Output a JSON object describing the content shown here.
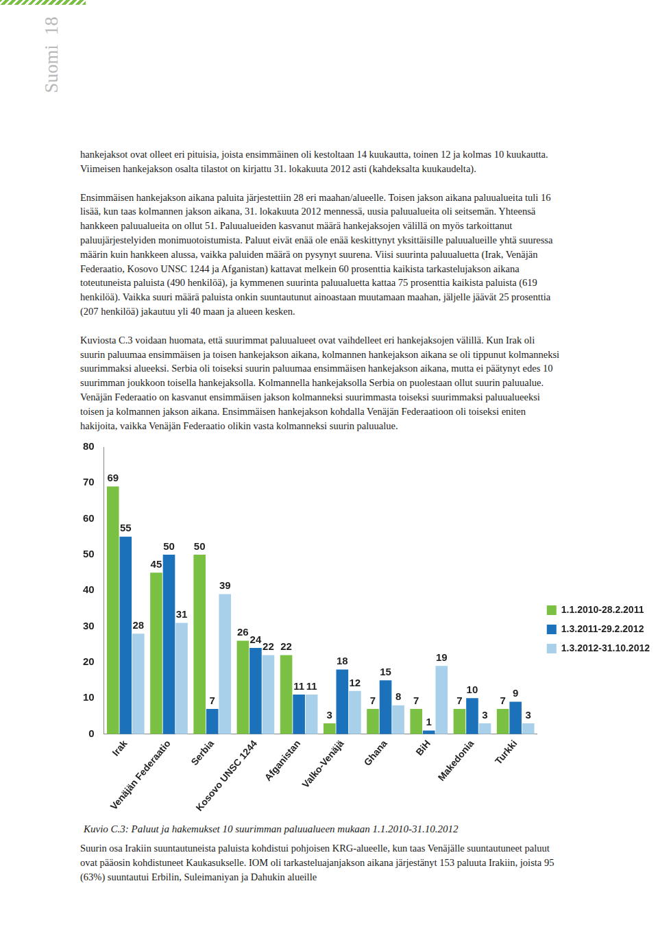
{
  "header": {
    "section": "Suomi",
    "page": "18"
  },
  "paragraphs": [
    "hankejaksot ovat olleet eri pituisia, joista ensimmäinen oli kestoltaan 14 kuukautta, toinen 12 ja kolmas 10 kuukautta. Viimeisen hankejakson osalta tilastot on kirjattu 31. lokakuuta 2012 asti (kahdeksalta kuukaudelta).",
    "Ensimmäisen hankejakson aikana paluita järjestettiin 28 eri maahan/alueelle. Toisen jakson aikana paluualueita tuli 16 lisää, kun taas kolmannen jakson aikana, 31. lokakuuta 2012 mennessä, uusia paluualueita oli seitsemän. Yhteensä hankkeen paluualueita on ollut 51. Paluualueiden kasvanut määrä hankejaksojen välillä on myös tarkoittanut paluujärjestelyiden monimuotoistumista. Paluut eivät enää ole enää keskittynyt yksittäisille paluualueille yhtä suuressa määrin kuin hankkeen alussa, vaikka paluiden määrä on pysynyt suurena. Viisi suurinta paluualuetta (Irak, Venäjän Federaatio, Kosovo UNSC 1244 ja Afganistan) kattavat melkein 60 prosenttia kaikista tarkastelujakson aikana toteutuneista paluista (490 henkilöä), ja kymmenen suurinta paluualuetta kattaa 75 prosenttia kaikista paluista (619 henkilöä). Vaikka suuri määrä paluista onkin suuntautunut ainoastaan muutamaan maahan, jäljelle jäävät 25 prosenttia (207 henkilöä) jakautuu yli 40 maan ja alueen kesken.",
    "Kuviosta C.3 voidaan huomata, että suurimmat paluualueet ovat vaihdelleet eri hankejaksojen välillä. Kun Irak oli suurin paluumaa ensimmäisen ja toisen hankejakson aikana, kolmannen hankejakson aikana se oli tippunut kolmanneksi suurimmaksi alueeksi. Serbia oli toiseksi suurin paluumaa ensimmäisen hankejakson aikana, mutta ei päätynyt edes 10 suurimman joukkoon toisella hankejaksolla. Kolmannella hankejaksolla Serbia on puolestaan ollut suurin paluualue. Venäjän Federaatio on kasvanut ensimmäisen jakson kolmanneksi suurimmasta toiseksi suurimmaksi paluualueeksi toisen ja kolmannen jakson aikana. Ensimmäisen hankejakson kohdalla Venäjän Federaatioon oli toiseksi eniten hakijoita, vaikka Venäjän Federaatio olikin vasta kolmanneksi suurin paluualue."
  ],
  "chart_data": {
    "type": "bar",
    "categories": [
      "Irak",
      "Venäjän Federaatio",
      "Serbia",
      "Kosovo UNSC 1244",
      "Afganistan",
      "Valko-Venäjä",
      "Ghana",
      "BiH",
      "Makedonia",
      "Turkki"
    ],
    "series": [
      {
        "name": "1.1.2010-28.2.2011",
        "color": "#7ac143",
        "values": [
          69,
          45,
          50,
          26,
          22,
          3,
          7,
          7,
          7,
          7
        ]
      },
      {
        "name": "1.3.2011-29.2.2012",
        "color": "#1b72bb",
        "values": [
          55,
          50,
          7,
          24,
          11,
          18,
          15,
          1,
          10,
          9
        ]
      },
      {
        "name": "1.3.2012-31.10.2012",
        "color": "#a8d0ea",
        "values": [
          28,
          31,
          39,
          22,
          11,
          12,
          8,
          19,
          3,
          3
        ]
      }
    ],
    "ylim": [
      0,
      80
    ],
    "yticks": [
      0,
      10,
      20,
      30,
      40,
      50,
      60,
      70,
      80
    ],
    "grid": false,
    "legend": "right",
    "data_labels": true
  },
  "caption": "Kuvio C.3: Paluut ja hakemukset 10 suurimman paluualueen mukaan 1.1.2010-31.10.2012",
  "closing": "Suurin osa Irakiin suuntautuneista paluista kohdistui pohjoisen KRG-alueelle, kun taas Venäjälle suuntautuneet paluut ovat pääosin kohdistuneet Kaukasukselle. IOM oli tarkasteluajanjakson aikana järjestänyt 153 paluuta Irakiin, joista 95 (63%) suuntautui Erbilin, Suleimaniyan ja Dahukin alueille"
}
